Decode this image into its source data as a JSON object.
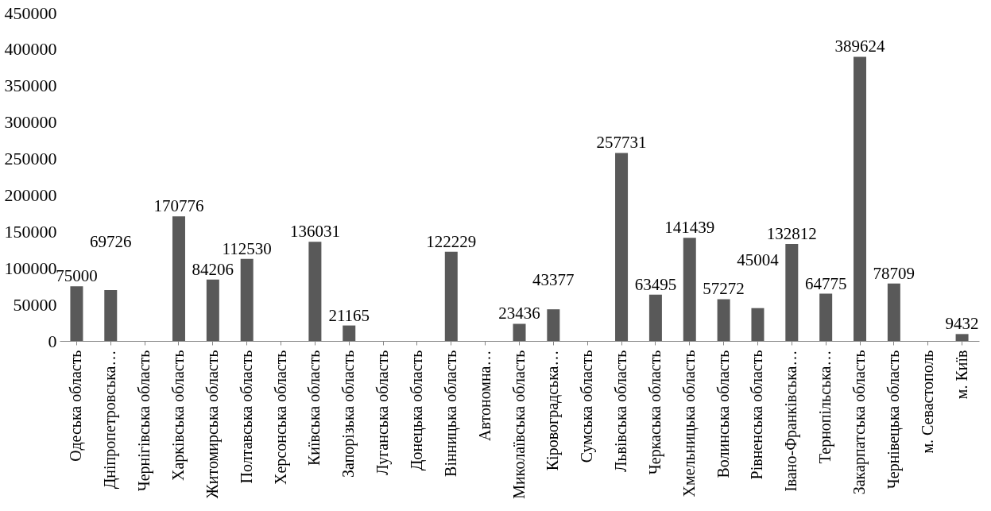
{
  "chart_data": {
    "type": "bar",
    "categories": [
      "Одеська область",
      "Дніпропетровська…",
      "Чернігівська область",
      "Харківська область",
      "Житомирська область",
      "Полтавська область",
      "Херсонська область",
      "Київська область",
      "Запорізька область",
      "Луганська область",
      "Донецька область",
      "Вінницька область",
      "Автономна…",
      "Миколаївська область",
      "Кіровоградська…",
      "Сумська область",
      "Львівська область",
      "Черкаська область",
      "Хмельницька область",
      "Волинська область",
      "Рівненська область",
      "Івано-Франківська…",
      "Тернопільська…",
      "Закарпатська область",
      "Чернівецька область",
      "м. Севастополь",
      "м. Київ"
    ],
    "values": [
      75000,
      69726,
      null,
      170776,
      84206,
      112530,
      null,
      136031,
      21165,
      null,
      null,
      122229,
      null,
      23436,
      43377,
      null,
      257731,
      63495,
      141439,
      57272,
      45004,
      132812,
      64775,
      389624,
      78709,
      null,
      9432
    ],
    "color": "#595959",
    "ylim": [
      0,
      450000
    ],
    "yticks": [
      0,
      50000,
      100000,
      150000,
      200000,
      250000,
      300000,
      350000,
      400000,
      450000
    ],
    "data_labels": true,
    "grid": false
  }
}
